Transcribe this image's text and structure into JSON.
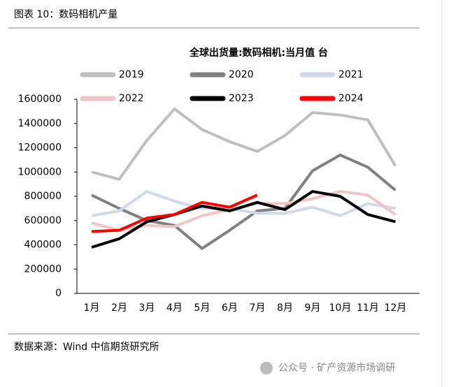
{
  "header": {
    "title": "图表 10：数码相机产量"
  },
  "chart_data": {
    "type": "line",
    "title": "全球出货量:数码相机:当月值 台",
    "categories": [
      "1月",
      "2月",
      "3月",
      "4月",
      "5月",
      "6月",
      "7月",
      "8月",
      "9月",
      "10月",
      "11月",
      "12月"
    ],
    "series": [
      {
        "name": "2019",
        "color": "#bfbfbf",
        "values": [
          1000000,
          940000,
          1260000,
          1520000,
          1350000,
          1250000,
          1170000,
          1300000,
          1490000,
          1470000,
          1430000,
          1050000
        ]
      },
      {
        "name": "2020",
        "color": "#808080",
        "values": [
          810000,
          700000,
          600000,
          560000,
          370000,
          520000,
          680000,
          700000,
          1010000,
          1140000,
          1040000,
          850000
        ]
      },
      {
        "name": "2021",
        "color": "#d0d9ea",
        "values": [
          640000,
          680000,
          840000,
          760000,
          700000,
          700000,
          660000,
          660000,
          710000,
          640000,
          740000,
          700000
        ]
      },
      {
        "name": "2022",
        "color": "#f4c3c5",
        "values": [
          580000,
          520000,
          560000,
          550000,
          640000,
          690000,
          740000,
          740000,
          780000,
          840000,
          810000,
          650000
        ]
      },
      {
        "name": "2023",
        "color": "#000000",
        "values": [
          380000,
          450000,
          590000,
          650000,
          720000,
          680000,
          750000,
          690000,
          840000,
          800000,
          650000,
          590000
        ]
      },
      {
        "name": "2024",
        "color": "#ff0000",
        "values": [
          510000,
          520000,
          620000,
          650000,
          750000,
          710000,
          810000,
          null,
          null,
          null,
          null,
          null
        ]
      }
    ],
    "ylim": [
      0,
      1600000
    ],
    "yticks": [
      0,
      200000,
      400000,
      600000,
      800000,
      1000000,
      1200000,
      1400000,
      1600000
    ]
  },
  "source": "数据来源：Wind 中信期货研究所",
  "watermark": "公众号 · 矿产资源市场调研"
}
